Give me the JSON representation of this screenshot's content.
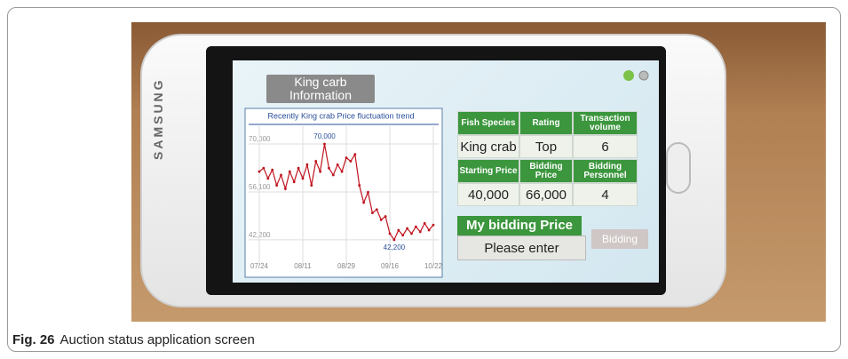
{
  "caption": {
    "label": "Fig. 26",
    "text": "Auction status application screen"
  },
  "phone": {
    "brand": "SAMSUNG"
  },
  "app": {
    "title": [
      "King carb",
      "Information"
    ],
    "info_table": {
      "header": [
        "Fish Species",
        "Rating",
        "Transaction volume"
      ],
      "row": [
        "King crab",
        "Top",
        "6"
      ]
    },
    "price_table": {
      "header": [
        "Starting Price",
        "Bidding Price",
        "Bidding Personnel"
      ],
      "row": [
        "40,000",
        "66,000",
        "4"
      ]
    },
    "bid": {
      "label": "My bidding Price",
      "placeholder": "Please enter",
      "button": "Bidding"
    }
  },
  "chart_data": {
    "type": "line",
    "title": "Recently King crab Price fluctuation trend",
    "categories": [
      "07/24",
      null,
      null,
      null,
      null,
      null,
      null,
      null,
      null,
      null,
      "08/11",
      null,
      null,
      null,
      null,
      null,
      null,
      null,
      null,
      null,
      "08/29",
      null,
      null,
      null,
      null,
      null,
      null,
      null,
      null,
      null,
      "09/16",
      null,
      null,
      null,
      null,
      null,
      null,
      null,
      null,
      null,
      "10/22"
    ],
    "values": [
      62000,
      63000,
      60000,
      62500,
      58000,
      61000,
      57000,
      62000,
      59000,
      63000,
      60000,
      64000,
      58000,
      65000,
      62000,
      70000,
      63000,
      61000,
      64000,
      62000,
      66000,
      65000,
      67000,
      58000,
      53000,
      56000,
      50000,
      51000,
      48000,
      49000,
      44000,
      42200,
      45000,
      43500,
      45500,
      44000,
      46000,
      44500,
      47000,
      45000,
      46500
    ],
    "value_labels": [
      null,
      null,
      null,
      null,
      null,
      null,
      null,
      null,
      null,
      null,
      null,
      null,
      null,
      null,
      null,
      "70,000",
      null,
      null,
      null,
      null,
      null,
      null,
      null,
      null,
      null,
      null,
      null,
      null,
      null,
      null,
      null,
      "42,200",
      null,
      null,
      null,
      null,
      null,
      null,
      null,
      null,
      null
    ],
    "color": "#c0141e",
    "ylim": [
      37000,
      74400
    ],
    "yticks": [
      {
        "value": 42200,
        "label": "42,200"
      },
      {
        "value": 56100,
        "label": "56,100"
      },
      {
        "value": 70000,
        "label": "70,000"
      }
    ],
    "grid": true
  }
}
